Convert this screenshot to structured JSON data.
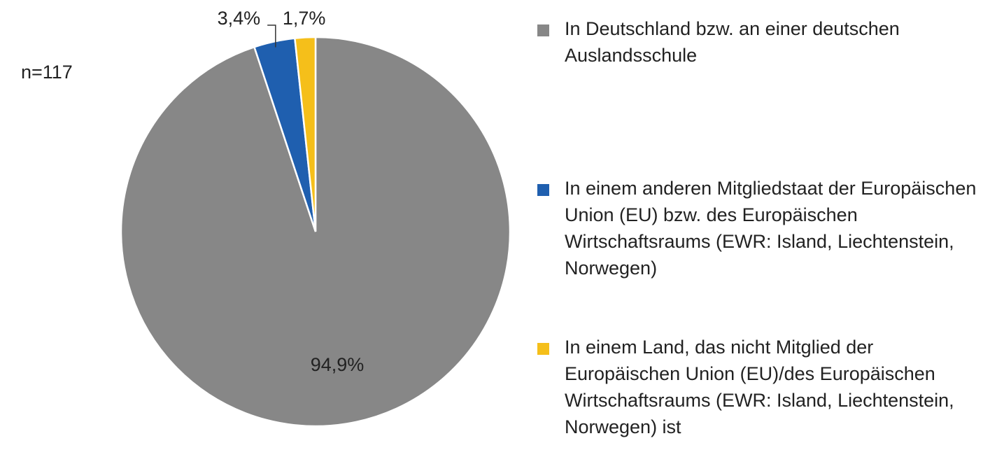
{
  "chart_data": {
    "type": "pie",
    "annotation": "n=117",
    "categories": [
      "In Deutschland bzw. an einer deutschen Auslandsschule",
      "In einem anderen Mitgliedstaat der Europäischen Union (EU) bzw. des Europäischen Wirtschaftsraums (EWR: Island, Liechtenstein, Norwegen)",
      "In einem Land, das nicht Mitglied der Europäischen Union (EU)/des Europäischen Wirtschaftsraums (EWR: Island, Liechtenstein, Norwegen) ist"
    ],
    "values": [
      94.9,
      3.4,
      1.7
    ],
    "value_labels": [
      "94,9%",
      "3,4%",
      "1,7%"
    ],
    "colors": [
      "#878787",
      "#1f5faf",
      "#f5bf1a"
    ],
    "legend": "right"
  }
}
